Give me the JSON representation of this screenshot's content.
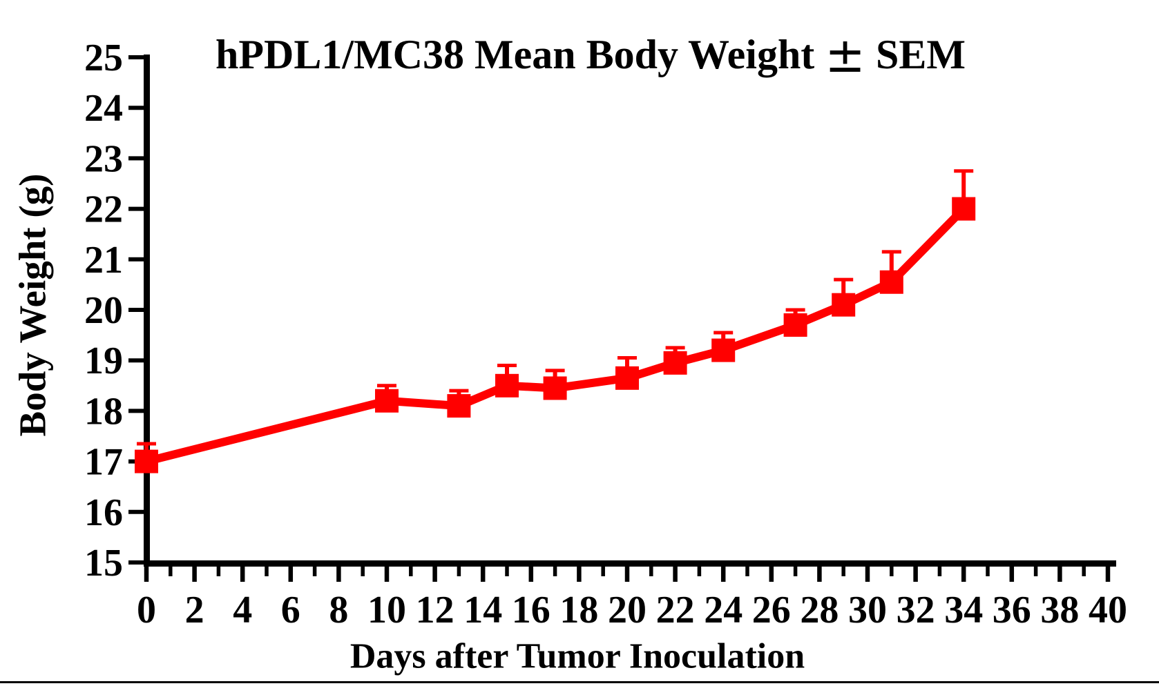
{
  "page": {
    "background_color": "#ffffff",
    "divider_color": "#000000",
    "text_color": "#000000"
  },
  "title_parts": {
    "pre": "hPDL1/MC38 Mean Body Weight ",
    "plus_minus": "±",
    "post": " SEM"
  },
  "chart_data": {
    "type": "line",
    "title": "hPDL1/MC38 Mean Body Weight ± SEM",
    "xlabel": "Days after Tumor Inoculation",
    "ylabel": "Body Weight (g)",
    "xlim": [
      0,
      40
    ],
    "ylim": [
      15,
      25
    ],
    "x_tick_interval_labeled": 2,
    "x_tick_interval_minor": 1,
    "y_tick_interval": 1,
    "grid": false,
    "legend": "none",
    "error_bars": "SEM, upward only, capped",
    "x": [
      0,
      10,
      13,
      15,
      17,
      20,
      22,
      24,
      27,
      29,
      31,
      34
    ],
    "series": [
      {
        "name": "hPDL1/MC38 mean body weight",
        "color": "#FF0000",
        "marker": "filled-square",
        "values": [
          17.0,
          18.2,
          18.1,
          18.5,
          18.45,
          18.65,
          18.95,
          19.2,
          19.7,
          20.1,
          20.55,
          22.0
        ],
        "sem": [
          0.35,
          0.3,
          0.3,
          0.4,
          0.35,
          0.4,
          0.3,
          0.35,
          0.3,
          0.5,
          0.6,
          0.75
        ]
      }
    ]
  }
}
